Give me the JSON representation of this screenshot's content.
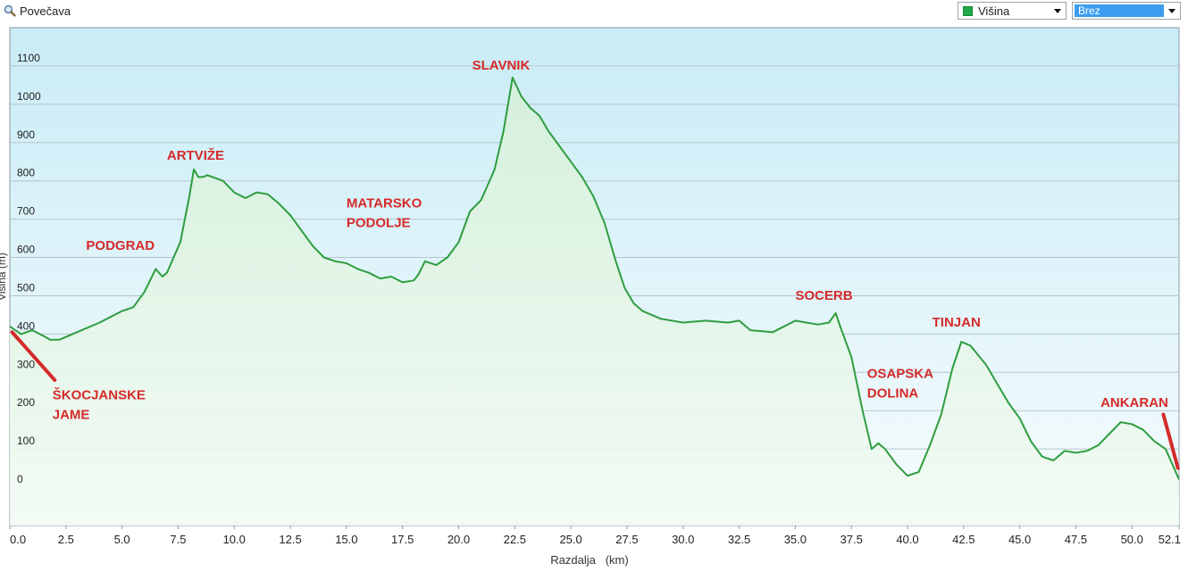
{
  "toolbar": {
    "zoom_label": "Povečava",
    "zoom_icon": "magnifier-icon",
    "series_select": "Višina",
    "series_color": "#22a846",
    "second_select": "Brez",
    "second_select_color": "#3c9df0"
  },
  "chart_data": {
    "type": "area",
    "title": "",
    "xlabel": "Razdalja   (km)",
    "ylabel": "Višina (m)",
    "xlim": [
      0,
      52.1
    ],
    "ylim": [
      -100,
      1200
    ],
    "x_ticks": [
      "0.0",
      "2.5",
      "5.0",
      "7.5",
      "10.0",
      "12.5",
      "15.0",
      "17.5",
      "20.0",
      "22.5",
      "25.0",
      "27.5",
      "30.0",
      "32.5",
      "35.0",
      "37.5",
      "40.0",
      "42.5",
      "45.0",
      "47.5",
      "50.0",
      "52.1"
    ],
    "y_ticks": [
      "0",
      "100",
      "200",
      "300",
      "400",
      "500",
      "600",
      "700",
      "800",
      "900",
      "1000",
      "1100"
    ],
    "grid": true,
    "line_color": "#2e9d3f",
    "fill_top_color": "#d6f0da",
    "bg_top_color": "#c9ecf6",
    "bg_bottom_color": "#f6fcfd",
    "annotation_color": "#d42a2a",
    "series": [
      {
        "name": "Višina",
        "x": [
          0,
          0.5,
          1,
          1.5,
          1.8,
          2.2,
          3,
          4,
          5,
          5.5,
          6,
          6.5,
          6.8,
          7,
          7.3,
          7.6,
          8,
          8.2,
          8.4,
          8.6,
          8.8,
          9.5,
          10,
          10.5,
          11,
          11.5,
          12,
          12.5,
          13,
          13.5,
          14,
          14.5,
          15,
          15.5,
          16,
          16.5,
          17,
          17.5,
          18,
          18.2,
          18.5,
          19,
          19.5,
          20,
          20.5,
          21,
          21.3,
          21.6,
          22,
          22.2,
          22.4,
          22.8,
          23.2,
          23.6,
          24,
          24.5,
          25,
          25.5,
          26,
          26.5,
          27,
          27.4,
          27.8,
          28.2,
          29,
          30,
          31,
          32,
          32.5,
          33,
          34,
          35,
          36,
          36.5,
          36.8,
          37,
          37.5,
          38,
          38.4,
          38.7,
          39,
          39.5,
          40,
          40.5,
          41,
          41.5,
          42,
          42.4,
          42.8,
          43.5,
          44,
          44.5,
          45,
          45.5,
          46,
          46.5,
          47,
          47.5,
          48,
          48.5,
          49,
          49.5,
          50,
          50.5,
          51,
          51.5,
          51.8,
          52.1
        ],
        "y": [
          420,
          400,
          410,
          395,
          385,
          385,
          405,
          430,
          460,
          470,
          510,
          570,
          550,
          560,
          600,
          640,
          760,
          830,
          810,
          810,
          815,
          800,
          770,
          755,
          770,
          765,
          740,
          710,
          670,
          630,
          600,
          590,
          585,
          570,
          560,
          545,
          550,
          535,
          540,
          555,
          590,
          580,
          600,
          640,
          720,
          750,
          790,
          830,
          930,
          1000,
          1070,
          1020,
          990,
          970,
          930,
          890,
          850,
          810,
          760,
          690,
          590,
          520,
          480,
          460,
          440,
          430,
          435,
          430,
          435,
          410,
          405,
          435,
          425,
          430,
          455,
          420,
          340,
          200,
          100,
          115,
          100,
          60,
          30,
          40,
          110,
          190,
          310,
          380,
          370,
          320,
          270,
          220,
          180,
          120,
          80,
          70,
          95,
          90,
          95,
          110,
          140,
          170,
          165,
          150,
          120,
          100,
          60,
          20
        ]
      }
    ],
    "annotations": [
      {
        "lines": [
          "ŠKOCJANSKE",
          "JAME"
        ],
        "x": 1.9,
        "y": 230,
        "pointer_from": [
          0.1,
          405
        ],
        "pointer_to": [
          2.0,
          280
        ]
      },
      {
        "lines": [
          "PODGRAD"
        ],
        "x": 3.4,
        "y": 620
      },
      {
        "lines": [
          "ARTVIŽE"
        ],
        "x": 7.0,
        "y": 855
      },
      {
        "lines": [
          "MATARSKO",
          "PODOLJE"
        ],
        "x": 15.0,
        "y": 730
      },
      {
        "lines": [
          "SLAVNIK"
        ],
        "x": 20.6,
        "y": 1090
      },
      {
        "lines": [
          "SOCERB"
        ],
        "x": 35.0,
        "y": 490
      },
      {
        "lines": [
          "OSAPSKA",
          "DOLINA"
        ],
        "x": 38.2,
        "y": 285
      },
      {
        "lines": [
          "TINJAN"
        ],
        "x": 41.1,
        "y": 420
      },
      {
        "lines": [
          "ANKARAN"
        ],
        "x": 48.6,
        "y": 210,
        "pointer_from": [
          51.4,
          190
        ],
        "pointer_to": [
          52.05,
          50
        ]
      }
    ]
  }
}
